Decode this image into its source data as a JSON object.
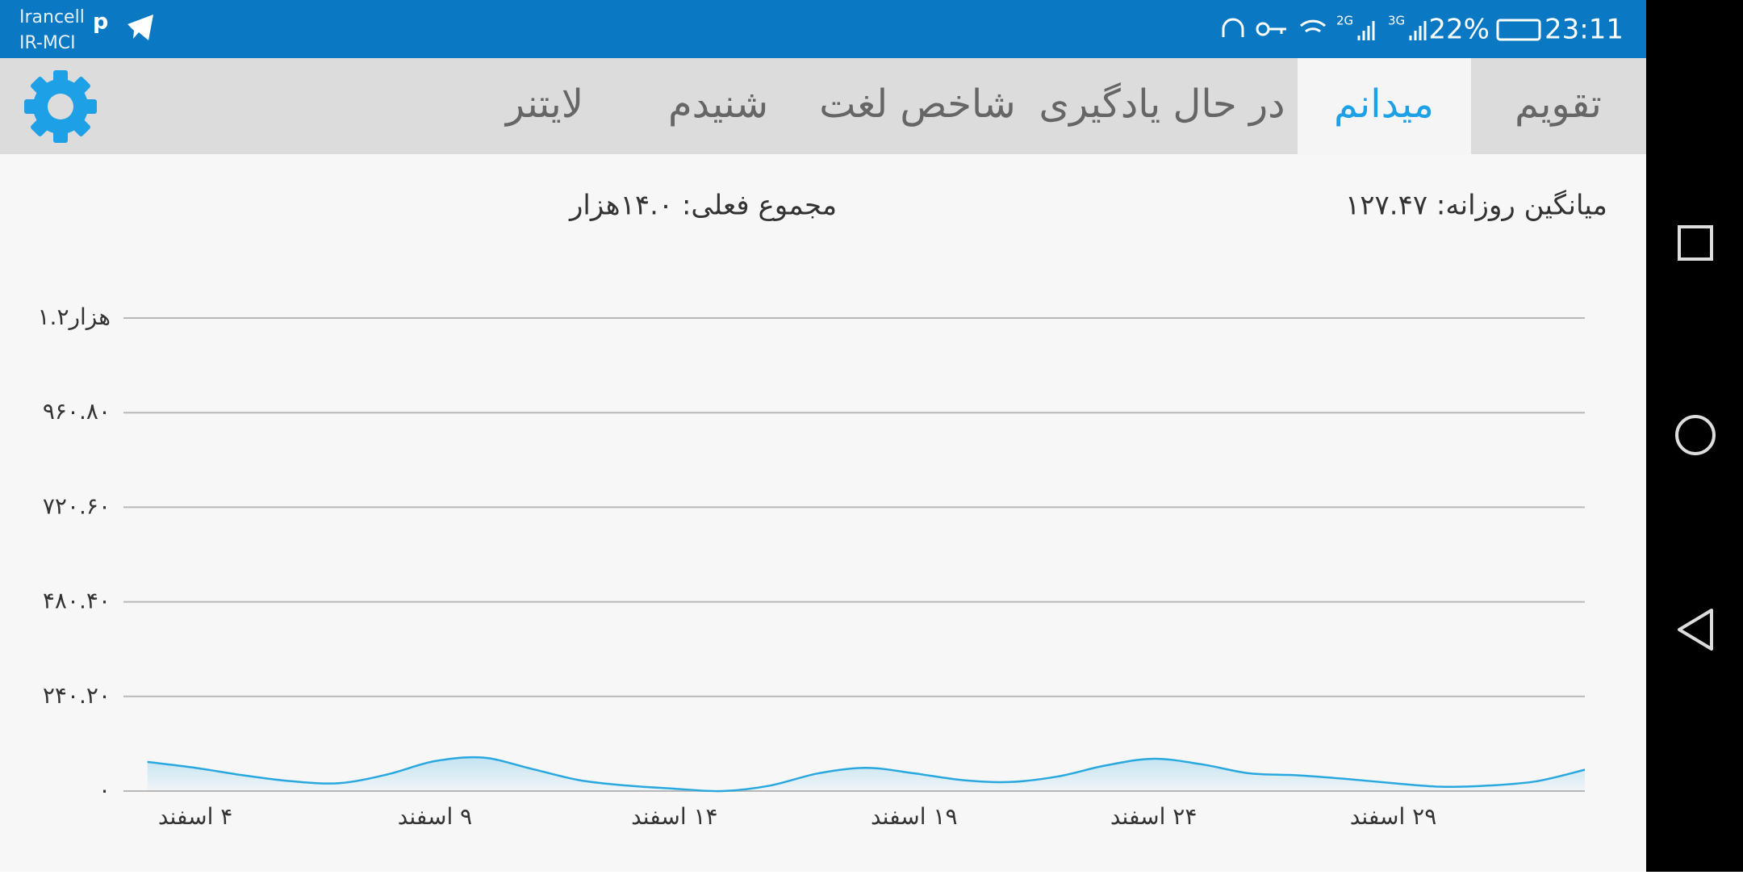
{
  "status_bar": {
    "carriers": [
      "Irancell",
      "IR-MCI"
    ],
    "network_labels": [
      "2G",
      "3G"
    ],
    "battery": "22%",
    "time": "23:11"
  },
  "tabs": [
    {
      "label": "تقویم",
      "active": false
    },
    {
      "label": "میدانم",
      "active": true
    },
    {
      "label": "در حال یادگیری",
      "active": false
    },
    {
      "label": "شاخص لغت",
      "active": false
    },
    {
      "label": "شنیدم",
      "active": false
    },
    {
      "label": "لایتنر",
      "active": false
    }
  ],
  "stats": {
    "daily_average": "میانگین روزانه: ۱۲۷.۴۷",
    "current_total": "مجموع فعلی: ۱۴.۰هزار"
  },
  "chart_data": {
    "type": "area",
    "color": "#29a8e0",
    "grid": true,
    "x": [
      3,
      4,
      5,
      6,
      7,
      8,
      9,
      10,
      11,
      12,
      13,
      14,
      15,
      16,
      17,
      18,
      19,
      20,
      21,
      22,
      23,
      24,
      25,
      26,
      27,
      28,
      29,
      30,
      31,
      32,
      33
    ],
    "values": [
      74,
      59,
      40,
      25,
      20,
      42,
      76,
      85,
      57,
      28,
      14,
      6,
      0,
      14,
      45,
      59,
      45,
      28,
      23,
      37,
      65,
      82,
      68,
      45,
      40,
      31,
      20,
      11,
      14,
      25,
      54
    ],
    "xlim": [
      2.5,
      33
    ],
    "ylim": [
      0,
      1201
    ],
    "xticks": [
      {
        "value": 4,
        "label": "۴ اسفند"
      },
      {
        "value": 9,
        "label": "۹ اسفند"
      },
      {
        "value": 14,
        "label": "۱۴ اسفند"
      },
      {
        "value": 19,
        "label": "۱۹ اسفند"
      },
      {
        "value": 24,
        "label": "۲۴ اسفند"
      },
      {
        "value": 29,
        "label": "۲۹ اسفند"
      }
    ],
    "yticks": [
      {
        "value": 0,
        "label": "۰"
      },
      {
        "value": 240.2,
        "label": "۲۴۰.۲۰"
      },
      {
        "value": 480.4,
        "label": "۴۸۰.۴۰"
      },
      {
        "value": 720.6,
        "label": "۷۲۰.۶۰"
      },
      {
        "value": 960.8,
        "label": "۹۶۰.۸۰"
      },
      {
        "value": 1201,
        "label": "۱.۲هزار"
      }
    ]
  }
}
